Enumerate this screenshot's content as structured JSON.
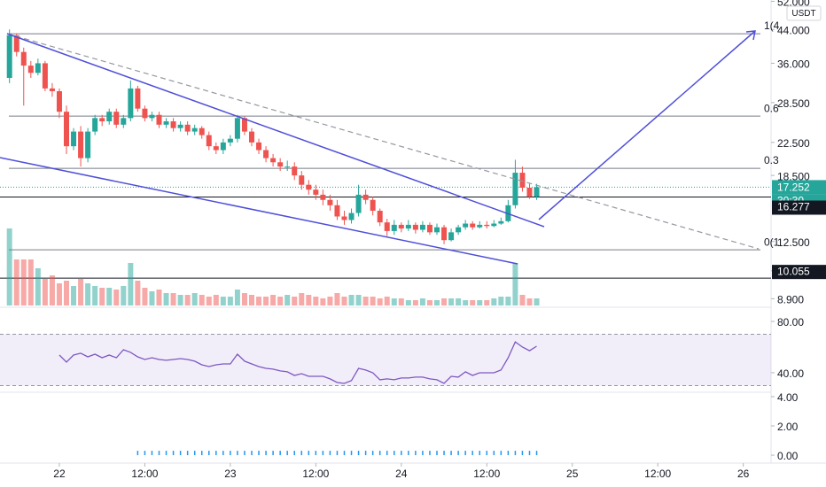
{
  "chart_data": [
    {
      "type": "candlestick",
      "quote": "USDT",
      "log_scale": true,
      "up_color": "#26a69a",
      "down_color": "#ef5350",
      "x": [
        -7,
        -6,
        -5,
        -4,
        -3,
        -2,
        -1,
        0,
        1,
        2,
        3,
        4,
        5,
        6,
        7,
        8,
        9,
        10,
        11,
        12,
        13,
        14,
        15,
        16,
        17,
        18,
        19,
        20,
        21,
        22,
        23,
        24,
        25,
        26,
        27,
        28,
        29,
        30,
        31,
        32,
        33,
        34,
        35,
        36,
        37,
        38,
        39,
        40,
        41,
        42,
        43,
        44,
        45,
        46,
        47,
        48,
        49,
        50,
        51,
        52,
        53,
        54,
        55,
        56,
        57,
        58,
        59,
        60,
        61,
        62,
        63,
        64,
        65,
        66,
        67
      ],
      "open": [
        33,
        42.5,
        38.5,
        35.5,
        34,
        36,
        31,
        30.5,
        27,
        22,
        24,
        20.5,
        24,
        26,
        25.5,
        27,
        25,
        26,
        31,
        27.5,
        26,
        26.5,
        25,
        25.5,
        24.5,
        25,
        24,
        24.5,
        23.5,
        22,
        21.5,
        22.5,
        23,
        26,
        24,
        22.5,
        21.5,
        20.5,
        20,
        19.5,
        19.5,
        18.5,
        17.5,
        17,
        16.5,
        16,
        15.5,
        14.5,
        14.2,
        14.8,
        16.5,
        16,
        15,
        14,
        13.3,
        13.8,
        13.5,
        13.8,
        13.4,
        13.8,
        13.2,
        13.6,
        12.6,
        13.2,
        13.6,
        13.9,
        13.6,
        13.8,
        13.7,
        13.9,
        14.1,
        15.5,
        18.8,
        17.2,
        16.3
      ],
      "high": [
        44,
        43,
        39.5,
        36.5,
        37,
        36.5,
        32,
        31,
        28,
        24.5,
        24.8,
        24.5,
        26.5,
        26.5,
        27.5,
        27.5,
        26.5,
        32.5,
        31.5,
        28,
        27,
        27,
        26,
        26,
        25.5,
        25.5,
        25,
        24.8,
        24,
        22.5,
        23,
        23.5,
        26.5,
        26.3,
        24.5,
        23,
        22,
        21,
        20.5,
        20.2,
        20,
        19,
        18,
        17.5,
        17,
        16.5,
        16,
        15,
        15.2,
        17.5,
        17,
        16.3,
        15.2,
        14.3,
        14.2,
        14,
        14.2,
        14,
        14.1,
        14,
        13.9,
        13.8,
        13.5,
        13.8,
        14.2,
        14.1,
        14.1,
        14.1,
        14.2,
        14.4,
        16,
        20.3,
        19.5,
        17.6,
        17.6
      ],
      "low": [
        32,
        37.5,
        28,
        33,
        33.5,
        30.5,
        29.5,
        26,
        21,
        21.5,
        19.5,
        20,
        23.5,
        24.8,
        25,
        24.5,
        24.5,
        25.5,
        27,
        25.5,
        25.5,
        24.5,
        24.5,
        24,
        24,
        23.5,
        23.5,
        23,
        21.5,
        21,
        21,
        22,
        22.5,
        23.5,
        22,
        21,
        20,
        19.5,
        19,
        19,
        18,
        17,
        16.5,
        16,
        15.5,
        15,
        14.2,
        13.8,
        13.9,
        14.5,
        15.6,
        14.6,
        13.7,
        12.9,
        13,
        13.2,
        13.3,
        13.1,
        13.2,
        13,
        13,
        12.3,
        12.5,
        13,
        13.4,
        13.4,
        13.5,
        13.5,
        13.6,
        13.8,
        14,
        15.2,
        16.8,
        16.1,
        16
      ],
      "close": [
        42.5,
        38.5,
        35.5,
        34,
        36,
        31,
        30.5,
        27,
        22,
        24,
        20.5,
        24,
        26,
        25.5,
        27,
        25,
        26,
        31,
        27.5,
        26,
        26.5,
        25,
        25.5,
        24.5,
        25,
        24,
        24.5,
        23.5,
        22,
        21.5,
        22.5,
        23,
        26,
        24,
        22.5,
        21.5,
        20.5,
        20,
        19.5,
        19.5,
        18.5,
        17.5,
        17,
        16.5,
        16,
        15.5,
        14.5,
        14.2,
        14.8,
        16.5,
        16,
        15,
        14,
        13.3,
        13.8,
        13.5,
        13.8,
        13.4,
        13.8,
        13.2,
        13.6,
        12.6,
        13.2,
        13.6,
        13.9,
        13.6,
        13.8,
        13.7,
        13.9,
        14.1,
        15.5,
        18.8,
        17.2,
        16.3,
        17.252
      ],
      "volume": [
        87,
        52,
        52,
        52,
        42,
        30,
        34,
        25,
        28,
        22,
        30,
        25,
        22,
        20,
        20,
        18,
        22,
        48,
        28,
        20,
        16,
        18,
        14,
        14,
        12,
        12,
        14,
        12,
        10,
        12,
        10,
        10,
        18,
        14,
        12,
        10,
        10,
        12,
        10,
        12,
        10,
        14,
        12,
        10,
        8,
        10,
        14,
        10,
        12,
        12,
        10,
        10,
        8,
        10,
        8,
        8,
        6,
        6,
        8,
        6,
        6,
        8,
        8,
        8,
        6,
        6,
        6,
        6,
        8,
        10,
        10,
        48,
        12,
        8,
        8
      ],
      "countdown": "30:30",
      "price_lines": [
        16.277,
        10.055
      ],
      "fib_levels": [
        {
          "value": 42.9,
          "label": "1(4"
        },
        {
          "value": 26.3,
          "label": "0.6"
        },
        {
          "value": 19.3,
          "label": "0.3"
        },
        {
          "value": 11.9,
          "label": "0(1"
        }
      ],
      "xlim": [
        -8.33,
        99.9
      ],
      "xticks": [
        {
          "value": 0,
          "label": "22"
        },
        {
          "value": 12,
          "label": "12:00"
        },
        {
          "value": 24,
          "label": "23"
        },
        {
          "value": 36,
          "label": "12:00"
        },
        {
          "value": 48,
          "label": "24"
        },
        {
          "value": 60,
          "label": "12:00"
        },
        {
          "value": 72,
          "label": "25"
        },
        {
          "value": 84,
          "label": "12:00"
        },
        {
          "value": 96,
          "label": "26"
        }
      ],
      "ylim": [
        8.55,
        52.4
      ],
      "yticks": [
        {
          "value": 52,
          "label": "52.000"
        },
        {
          "value": 44,
          "label": "44.000"
        },
        {
          "value": 36,
          "label": "36.000"
        },
        {
          "value": 28.5,
          "label": "28.500"
        },
        {
          "value": 22.5,
          "label": "22.500"
        },
        {
          "value": 18.5,
          "label": "18.500"
        },
        {
          "value": 12.5,
          "label": "12.500"
        },
        {
          "value": 10.5,
          "label": "10.500"
        },
        {
          "value": 8.9,
          "label": "8.900"
        }
      ]
    },
    {
      "type": "line",
      "color": "#7e57c2",
      "band": [
        30,
        70
      ],
      "values": [
        null,
        null,
        null,
        null,
        null,
        null,
        null,
        53.8,
        48.3,
        53.8,
        55.2,
        52.4,
        54.5,
        51.7,
        53.8,
        51.7,
        57.9,
        55.9,
        52.4,
        50.3,
        51.7,
        50.3,
        49.7,
        50.3,
        51,
        50.3,
        49,
        46.2,
        44.8,
        46.2,
        46.9,
        46.9,
        54.5,
        49,
        46.9,
        44.8,
        43.4,
        42.8,
        41.4,
        40.7,
        37.9,
        39.3,
        37.2,
        37.2,
        37.2,
        35.2,
        32.4,
        31.7,
        33.8,
        43.4,
        42.1,
        40,
        34.5,
        35.2,
        34.5,
        35.9,
        35.9,
        36.6,
        36.6,
        35.2,
        34.5,
        31.7,
        37.2,
        36.6,
        40.7,
        37.9,
        40,
        40,
        40,
        42.1,
        51.7,
        64.1,
        60,
        57.2,
        60.7
      ],
      "ylim": [
        23.4,
        89
      ],
      "yticks": [
        {
          "value": 80,
          "label": "80.00"
        },
        {
          "value": 40,
          "label": "40.00"
        }
      ]
    },
    {
      "type": "bar",
      "color": "#2196f3",
      "values": [
        null,
        null,
        null,
        null,
        null,
        null,
        null,
        null,
        null,
        null,
        null,
        null,
        null,
        null,
        null,
        null,
        null,
        null,
        0.3,
        0.3,
        0.3,
        0.3,
        0.3,
        0.3,
        0.3,
        0.3,
        0.3,
        0.3,
        0.3,
        0.3,
        0.3,
        0.3,
        0.3,
        0.3,
        0.3,
        0.3,
        0.3,
        0.3,
        0.3,
        0.3,
        0.3,
        0.3,
        0.3,
        0.3,
        0.3,
        0.3,
        0.3,
        0.3,
        0.3,
        0.3,
        0.3,
        0.3,
        0.3,
        0.3,
        0.3,
        0.3,
        0.3,
        0.3,
        0.3,
        0.3,
        0.3,
        0.3,
        0.3,
        0.3,
        0.3,
        0.3,
        0.3,
        0.3,
        0.3,
        0.3,
        0.3,
        0.3,
        0.3,
        0.3,
        0.3
      ],
      "ylim": [
        -0.36,
        4.18
      ],
      "yticks": [
        {
          "value": 4,
          "label": "4.00"
        },
        {
          "value": 2,
          "label": "2.00"
        },
        {
          "value": 0,
          "label": "0.00"
        }
      ]
    }
  ]
}
